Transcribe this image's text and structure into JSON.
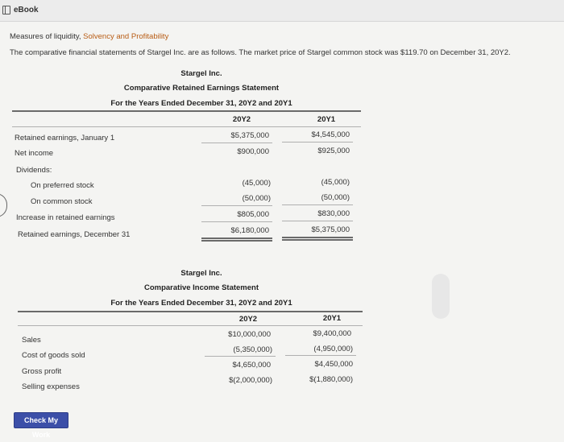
{
  "window": {
    "title": "eBook",
    "icon": "book-icon"
  },
  "heading": {
    "p1": "Measures of liquidity, ",
    "p2": "Solvency and ",
    "p3": "Profitability"
  },
  "intro": "The comparative financial statements of Stargel Inc. are as follows. The market price of Stargel common stock was $119.70 on December 31, 20Y2.",
  "retained": {
    "company": "Stargel Inc.",
    "title": "Comparative Retained Earnings Statement",
    "period": "For the Years Ended December 31, 20Y2 and 20Y1",
    "col1": "20Y2",
    "col2": "20Y1",
    "rows": [
      {
        "label": "Retained earnings, January 1",
        "v1": "$5,375,000",
        "v2": "$4,545,000"
      },
      {
        "label": "Net income",
        "v1": "$900,000",
        "v2": "$925,000"
      },
      {
        "label": "Dividends:",
        "v1": "",
        "v2": ""
      },
      {
        "label": "On preferred stock",
        "v1": "(45,000)",
        "v2": "(45,000)"
      },
      {
        "label": "On common stock",
        "v1": "(50,000)",
        "v2": "(50,000)"
      },
      {
        "label": "Increase in retained earnings",
        "v1": "$805,000",
        "v2": "$830,000"
      },
      {
        "label": "Retained earnings, December 31",
        "v1": "$6,180,000",
        "v2": "$5,375,000"
      }
    ]
  },
  "income": {
    "company": "Stargel Inc.",
    "title": "Comparative Income Statement",
    "period": "For the Years Ended December 31, 20Y2 and 20Y1",
    "col1": "20Y2",
    "col2": "20Y1",
    "rows": [
      {
        "label": "Sales",
        "v1": "$10,000,000",
        "v2": "$9,400,000"
      },
      {
        "label": "Cost of goods sold",
        "v1": "(5,350,000)",
        "v2": "(4,950,000)"
      },
      {
        "label": "Gross profit",
        "v1": "$4,650,000",
        "v2": "$4,450,000"
      },
      {
        "label": "Selling expenses",
        "v1": "$(2,000,000)",
        "v2": "$(1,880,000)"
      }
    ]
  },
  "check_button": "Check My Work"
}
